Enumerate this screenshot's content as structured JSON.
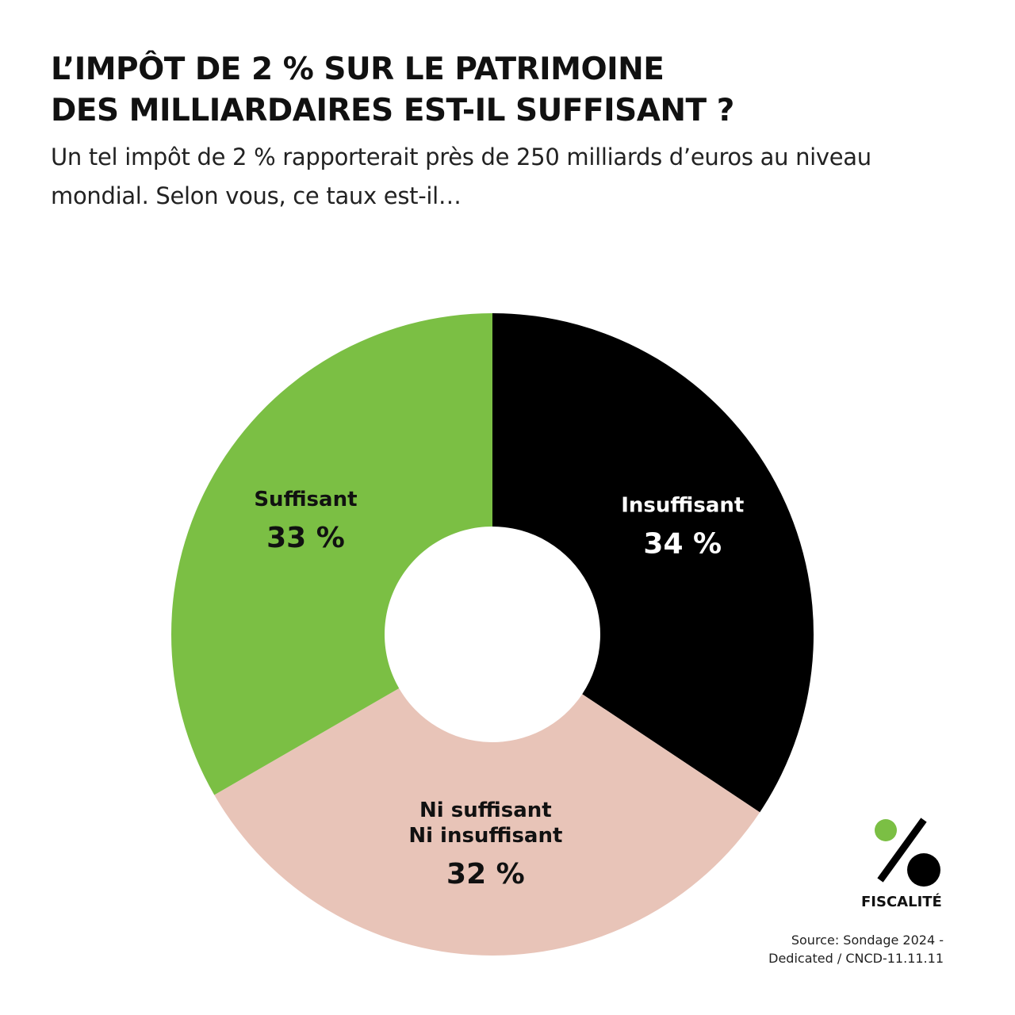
{
  "title_lines": [
    "L’IMPÔT DE 2 % SUR LE PATRIMOINE",
    "DES MILLIARDAIRES EST-IL SUFFISANT ?"
  ],
  "subtitle": "Un tel impôt de 2 % rapporterait près de 250 milliards d’euros au niveau mondial. Selon vous, ce taux est-il…",
  "chart_data": {
    "type": "pie",
    "variant": "donut",
    "start": "top",
    "direction": "clockwise",
    "slices": [
      {
        "label_lines": [
          "Insuffisant"
        ],
        "value": 34,
        "value_label": "34 %",
        "color": "#000000",
        "text_color": "#ffffff"
      },
      {
        "label_lines": [
          "Ni suffisant",
          "Ni insuffisant"
        ],
        "value": 32,
        "value_label": "32 %",
        "color": "#e8c4b8",
        "text_color": "#111111"
      },
      {
        "label_lines": [
          "Suffisant"
        ],
        "value": 33,
        "value_label": "33 %",
        "color": "#7bbf44",
        "text_color": "#111111"
      }
    ]
  },
  "logo": {
    "text": "FISCALITÉ",
    "icon": "percent-icon",
    "dot_color": "#7bbf44"
  },
  "source_lines": [
    "Source: Sondage 2024 -",
    "Dedicated /  CNCD-11.11.11"
  ]
}
